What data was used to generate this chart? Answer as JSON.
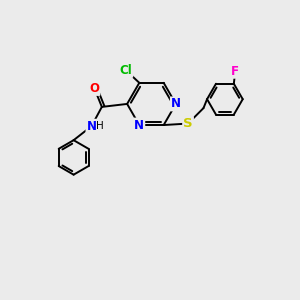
{
  "background_color": "#ebebeb",
  "bond_color": "#000000",
  "atom_colors": {
    "Cl": "#00bb00",
    "N": "#0000ff",
    "O": "#ff0000",
    "S": "#cccc00",
    "F": "#ff00cc",
    "C": "#000000",
    "H": "#000000"
  },
  "font_size": 8.5,
  "figsize": [
    3.0,
    3.0
  ],
  "dpi": 100
}
